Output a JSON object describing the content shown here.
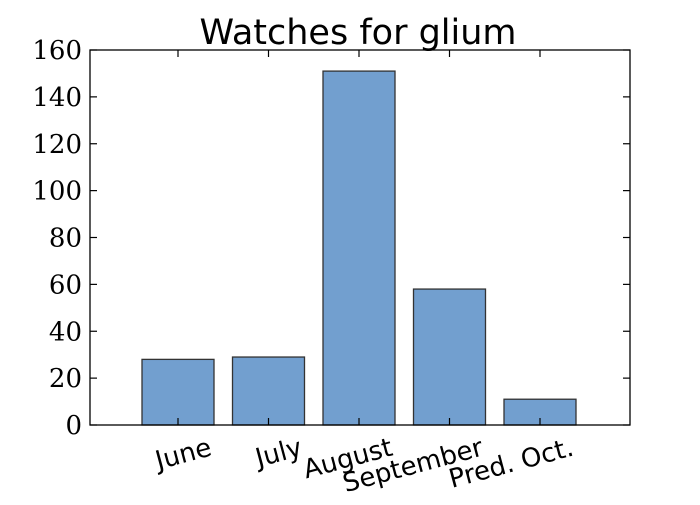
{
  "chart_data": {
    "type": "bar",
    "title": "Watches for glium",
    "xlabel": "",
    "ylabel": "",
    "categories": [
      "June",
      "July",
      "August",
      "September",
      "Pred. Oct."
    ],
    "values": [
      28,
      29,
      151,
      58,
      11
    ],
    "ylim": [
      0,
      160
    ],
    "yticks": [
      0,
      20,
      40,
      60,
      80,
      100,
      120,
      140,
      160
    ],
    "x_tick_rotation_deg": -15,
    "grid": false,
    "legend": "none",
    "bar_color": "#729fcf",
    "bar_edge_color": "#333333"
  }
}
